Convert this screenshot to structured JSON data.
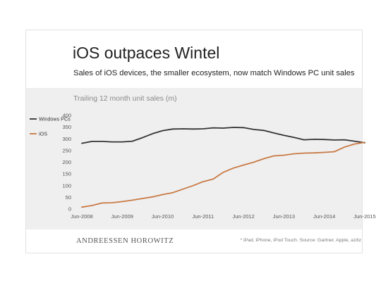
{
  "header": {
    "title": "iOS outpaces Wintel",
    "subtitle": "Sales of iOS devices, the smaller ecosystem, now match Windows PC unit sales"
  },
  "footer": {
    "brand": "ANDREESSEN HOROWITZ",
    "source": "* iPad, iPhone, iPod Touch. Source: Gartner, Apple, a16z"
  },
  "colors": {
    "windows": "#333333",
    "ios": "#c87a45",
    "band": "#efefef"
  },
  "chart_data": {
    "type": "line",
    "title": "Trailing 12 month unit sales (m)",
    "xlabel": "",
    "ylabel": "",
    "ylim": [
      0,
      400
    ],
    "yticks": [
      0,
      50,
      100,
      150,
      200,
      250,
      300,
      350,
      400
    ],
    "xticks": [
      "Jun-2008",
      "Jun-2009",
      "Jun-2010",
      "Jun-2011",
      "Jun-2012",
      "Jun-2013",
      "Jun-2014",
      "Jun-2015"
    ],
    "x": [
      "Jun-2008",
      "Sep-2008",
      "Dec-2008",
      "Mar-2009",
      "Jun-2009",
      "Sep-2009",
      "Dec-2009",
      "Mar-2010",
      "Jun-2010",
      "Sep-2010",
      "Dec-2010",
      "Mar-2011",
      "Jun-2011",
      "Sep-2011",
      "Dec-2011",
      "Mar-2012",
      "Jun-2012",
      "Sep-2012",
      "Dec-2012",
      "Mar-2013",
      "Jun-2013",
      "Sep-2013",
      "Dec-2013",
      "Mar-2014",
      "Jun-2014",
      "Sep-2014",
      "Dec-2014",
      "Mar-2015",
      "Jun-2015"
    ],
    "grid": false,
    "legend": "left",
    "series": [
      {
        "name": "Windows PCs",
        "values": [
          281,
          289,
          289,
          287,
          287,
          290,
          305,
          322,
          335,
          342,
          343,
          342,
          343,
          347,
          346,
          349,
          348,
          340,
          336,
          325,
          315,
          306,
          296,
          298,
          297,
          295,
          296,
          290,
          283
        ]
      },
      {
        "name": "iOS",
        "values": [
          8,
          15,
          26,
          27,
          32,
          38,
          45,
          52,
          62,
          70,
          85,
          100,
          117,
          128,
          157,
          175,
          188,
          200,
          215,
          227,
          230,
          236,
          239,
          240,
          242,
          245,
          265,
          278,
          285
        ]
      }
    ]
  }
}
